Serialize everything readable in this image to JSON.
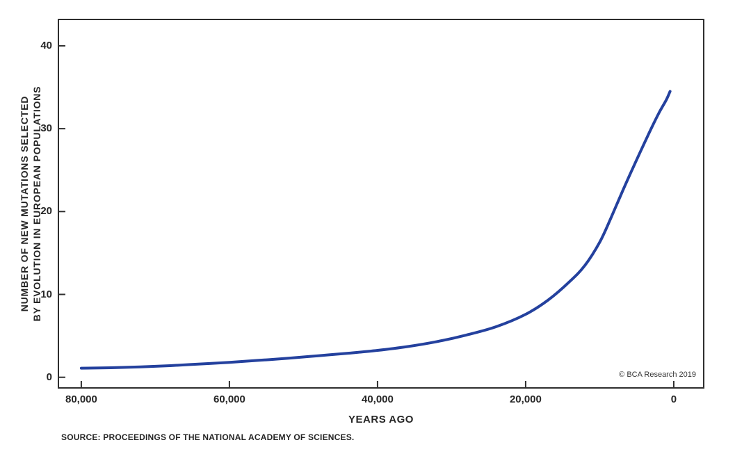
{
  "page": {
    "background": "#ffffff",
    "copyright": "© BCA Research 2019",
    "source_note": "SOURCE: PROCEEDINGS OF THE NATIONAL ACADEMY OF SCIENCES.",
    "x_axis_title": "YEARS AGO",
    "y_axis_title_line1": "NUMBER OF NEW MUTATIONS SELECTED",
    "y_axis_title_line2": "BY EVOLUTION IN EUROPEAN POPULATIONS"
  },
  "chart_data": {
    "type": "line",
    "title": "",
    "xlabel": "YEARS AGO",
    "ylabel": "NUMBER OF NEW MUTATIONS SELECTED BY EVOLUTION IN EUROPEAN POPULATIONS",
    "x_axis_reversed": true,
    "xlim": [
      83000,
      -3950
    ],
    "ylim": [
      -1.2,
      43.1
    ],
    "grid": false,
    "legend": "none",
    "axis_color": "#2e2e2e",
    "text_color": "#262626",
    "x_ticks": [
      {
        "value": 80000,
        "label": "80,000"
      },
      {
        "value": 60000,
        "label": "60,000"
      },
      {
        "value": 40000,
        "label": "40,000"
      },
      {
        "value": 20000,
        "label": "20,000"
      },
      {
        "value": 0,
        "label": "0"
      }
    ],
    "y_ticks": [
      {
        "value": 0,
        "label": "0"
      },
      {
        "value": 10,
        "label": "10"
      },
      {
        "value": 20,
        "label": "20"
      },
      {
        "value": 30,
        "label": "30"
      },
      {
        "value": 40,
        "label": "40"
      }
    ],
    "series": [
      {
        "color": "#24419e",
        "stroke_width": 4,
        "points": [
          [
            80000,
            1.1
          ],
          [
            76000,
            1.15
          ],
          [
            72000,
            1.25
          ],
          [
            68000,
            1.4
          ],
          [
            64000,
            1.6
          ],
          [
            60000,
            1.8
          ],
          [
            56000,
            2.05
          ],
          [
            52000,
            2.3
          ],
          [
            48000,
            2.6
          ],
          [
            44000,
            2.9
          ],
          [
            40000,
            3.25
          ],
          [
            36000,
            3.7
          ],
          [
            32000,
            4.3
          ],
          [
            28000,
            5.1
          ],
          [
            24000,
            6.1
          ],
          [
            20000,
            7.6
          ],
          [
            17000,
            9.3
          ],
          [
            14000,
            11.6
          ],
          [
            12000,
            13.5
          ],
          [
            10000,
            16.3
          ],
          [
            8500,
            19.2
          ],
          [
            7000,
            22.3
          ],
          [
            5500,
            25.3
          ],
          [
            4000,
            28.2
          ],
          [
            3000,
            30.1
          ],
          [
            2000,
            31.9
          ],
          [
            1000,
            33.5
          ],
          [
            500,
            34.5
          ]
        ]
      }
    ]
  }
}
